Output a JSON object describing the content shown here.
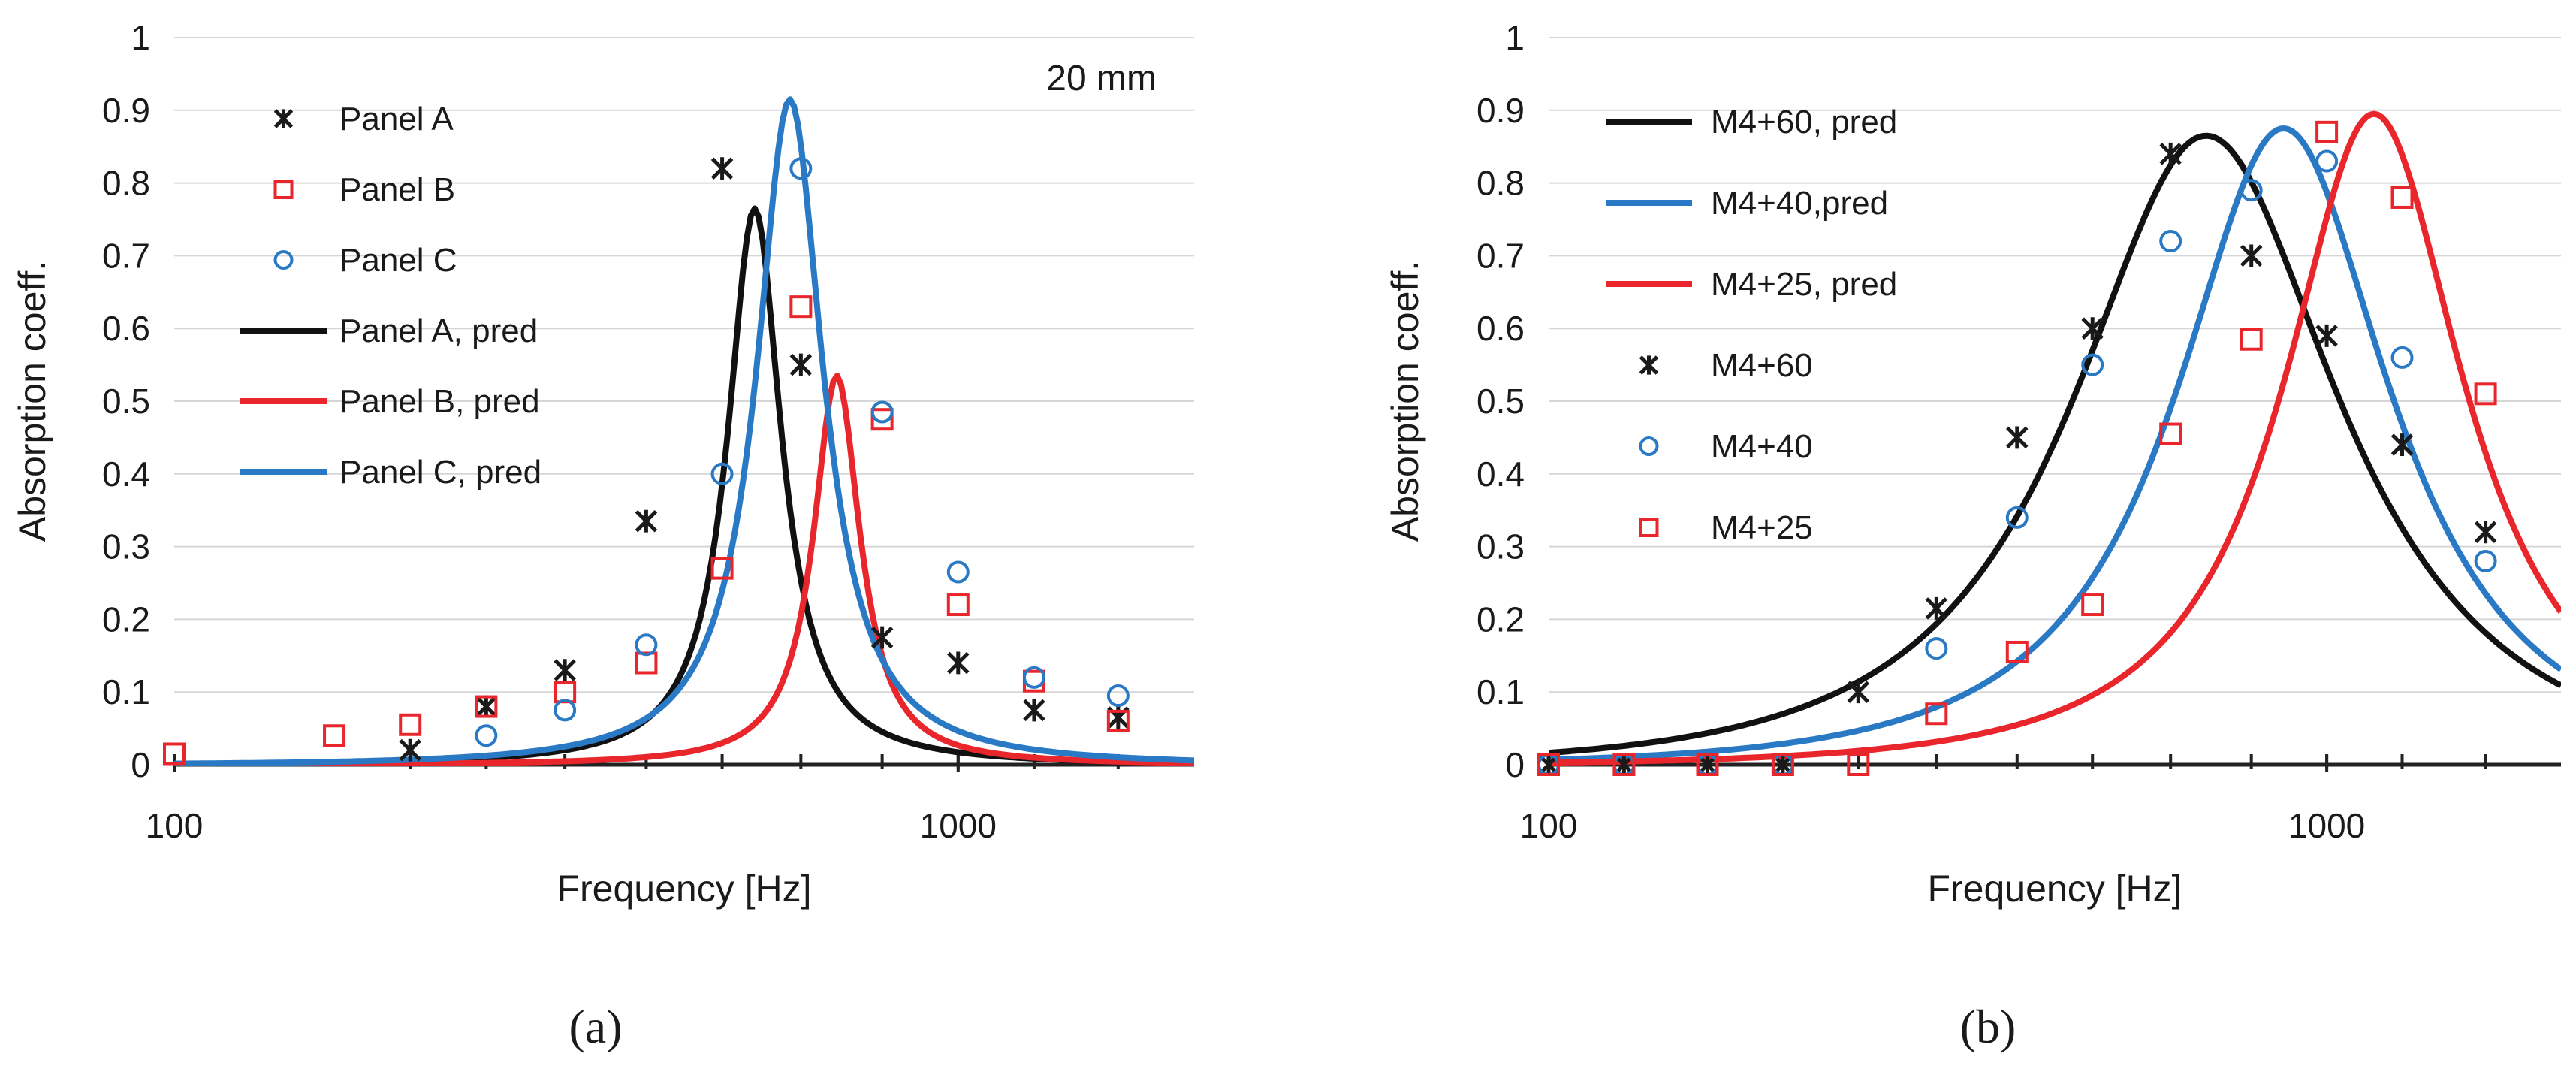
{
  "figure": {
    "panel_a_label": "(a)",
    "panel_b_label": "(b)"
  },
  "chart_data": [
    {
      "id": "a",
      "type": "line",
      "xscale": "log",
      "xlim": [
        100,
        2000
      ],
      "ylim": [
        0,
        1
      ],
      "xlabel": "Frequency  [Hz]",
      "ylabel": "Absorption coeff.",
      "annotation": "20 mm",
      "xticks": [
        100,
        1000
      ],
      "xtick_labels": [
        "100",
        "1000"
      ],
      "minor_xticks": [
        200,
        250,
        315,
        400,
        500,
        630,
        800,
        1000,
        1250,
        1600
      ],
      "yticks": [
        0,
        0.1,
        0.2,
        0.3,
        0.4,
        0.5,
        0.6,
        0.7,
        0.8,
        0.9,
        1
      ],
      "ytick_labels": [
        "0",
        "0.1",
        "0.2",
        "0.3",
        "0.4",
        "0.5",
        "0.6",
        "0.7",
        "0.8",
        "0.9",
        "1"
      ],
      "grid": "horizontal",
      "legend": [
        {
          "label": "Panel A",
          "kind": "marker",
          "marker": "star",
          "color": "#1a1a1a"
        },
        {
          "label": "Panel B",
          "kind": "marker",
          "marker": "square",
          "color": "#e8262b"
        },
        {
          "label": "Panel C",
          "kind": "marker",
          "marker": "circle",
          "color": "#2a79c4"
        },
        {
          "label": "Panel A, pred",
          "kind": "line",
          "color": "#111111"
        },
        {
          "label": "Panel B, pred",
          "kind": "line",
          "color": "#e8262b"
        },
        {
          "label": "Panel C, pred",
          "kind": "line",
          "color": "#2a79c4"
        }
      ],
      "scatter_series": [
        {
          "name": "Panel A",
          "marker": "star",
          "color": "#1a1a1a",
          "x": [
            200,
            250,
            315,
            400,
            500,
            630,
            800,
            1000,
            1250,
            1600
          ],
          "y": [
            0.02,
            0.08,
            0.13,
            0.335,
            0.82,
            0.55,
            0.175,
            0.14,
            0.075,
            0.065
          ]
        },
        {
          "name": "Panel B",
          "marker": "square",
          "color": "#e8262b",
          "x": [
            100,
            160,
            200,
            250,
            315,
            400,
            500,
            630,
            800,
            1000,
            1250,
            1600
          ],
          "y": [
            0.015,
            0.04,
            0.055,
            0.08,
            0.1,
            0.14,
            0.27,
            0.63,
            0.475,
            0.22,
            0.115,
            0.06
          ]
        },
        {
          "name": "Panel C",
          "marker": "circle",
          "color": "#2a79c4",
          "x": [
            250,
            315,
            400,
            500,
            630,
            800,
            1000,
            1250,
            1600
          ],
          "y": [
            0.04,
            0.075,
            0.165,
            0.4,
            0.82,
            0.485,
            0.265,
            0.12,
            0.095
          ]
        }
      ],
      "line_series": [
        {
          "name": "Panel A, pred",
          "color": "#111111",
          "peak_hz": 550,
          "peak": 0.765,
          "q": 5.2
        },
        {
          "name": "Panel B, pred",
          "color": "#e8262b",
          "peak_hz": 700,
          "peak": 0.535,
          "q": 6.0
        },
        {
          "name": "Panel C, pred",
          "color": "#2a79c4",
          "peak_hz": 610,
          "peak": 0.915,
          "q": 4.2
        }
      ]
    },
    {
      "id": "b",
      "type": "line",
      "xscale": "log",
      "xlim": [
        100,
        2000
      ],
      "ylim": [
        0,
        1
      ],
      "xlabel": "Frequency [Hz]",
      "ylabel": "Absorption coeff.",
      "xticks": [
        100,
        1000
      ],
      "xtick_labels": [
        "100",
        "1000"
      ],
      "minor_xticks": [
        125,
        160,
        200,
        250,
        315,
        400,
        500,
        630,
        800,
        1000,
        1250,
        1600
      ],
      "yticks": [
        0,
        0.1,
        0.2,
        0.3,
        0.4,
        0.5,
        0.6,
        0.7,
        0.8,
        0.9,
        1
      ],
      "ytick_labels": [
        "0",
        "0.1",
        "0.2",
        "0.3",
        "0.4",
        "0.5",
        "0.6",
        "0.7",
        "0.8",
        "0.9",
        "1"
      ],
      "grid": "horizontal",
      "legend": [
        {
          "label": "M4+60, pred",
          "kind": "line",
          "color": "#111111"
        },
        {
          "label": "M4+40,pred",
          "kind": "line",
          "color": "#2a79c4"
        },
        {
          "label": "M4+25, pred",
          "kind": "line",
          "color": "#e8262b"
        },
        {
          "label": "M4+60",
          "kind": "marker",
          "marker": "star",
          "color": "#1a1a1a"
        },
        {
          "label": "M4+40",
          "kind": "marker",
          "marker": "circle",
          "color": "#2a79c4"
        },
        {
          "label": "M4+25",
          "kind": "marker",
          "marker": "square",
          "color": "#e8262b"
        }
      ],
      "scatter_series": [
        {
          "name": "M4+60",
          "marker": "star",
          "color": "#1a1a1a",
          "x": [
            100,
            125,
            160,
            200,
            250,
            315,
            400,
            500,
            630,
            800,
            1000,
            1250,
            1600
          ],
          "y": [
            0,
            0,
            0,
            0,
            0.1,
            0.215,
            0.45,
            0.6,
            0.84,
            0.7,
            0.59,
            0.44,
            0.32
          ]
        },
        {
          "name": "M4+40",
          "marker": "circle",
          "color": "#2a79c4",
          "x": [
            100,
            125,
            160,
            200,
            315,
            400,
            500,
            630,
            800,
            1000,
            1250,
            1600
          ],
          "y": [
            0,
            0,
            0,
            0,
            0.16,
            0.34,
            0.55,
            0.72,
            0.79,
            0.83,
            0.56,
            0.28
          ]
        },
        {
          "name": "M4+25",
          "marker": "square",
          "color": "#e8262b",
          "x": [
            100,
            125,
            160,
            200,
            250,
            315,
            400,
            500,
            630,
            800,
            1000,
            1250,
            1600
          ],
          "y": [
            0,
            0,
            0,
            0,
            0,
            0.07,
            0.155,
            0.22,
            0.455,
            0.585,
            0.87,
            0.78,
            0.51
          ]
        }
      ],
      "line_series": [
        {
          "name": "M4+60, pred",
          "color": "#111111",
          "peak_hz": 700,
          "peak": 0.865,
          "q": 1.05
        },
        {
          "name": "M4+40,pred",
          "color": "#2a79c4",
          "peak_hz": 880,
          "peak": 0.875,
          "q": 1.3
        },
        {
          "name": "M4+25, pred",
          "color": "#e8262b",
          "peak_hz": 1150,
          "peak": 0.895,
          "q": 1.55
        }
      ]
    }
  ]
}
